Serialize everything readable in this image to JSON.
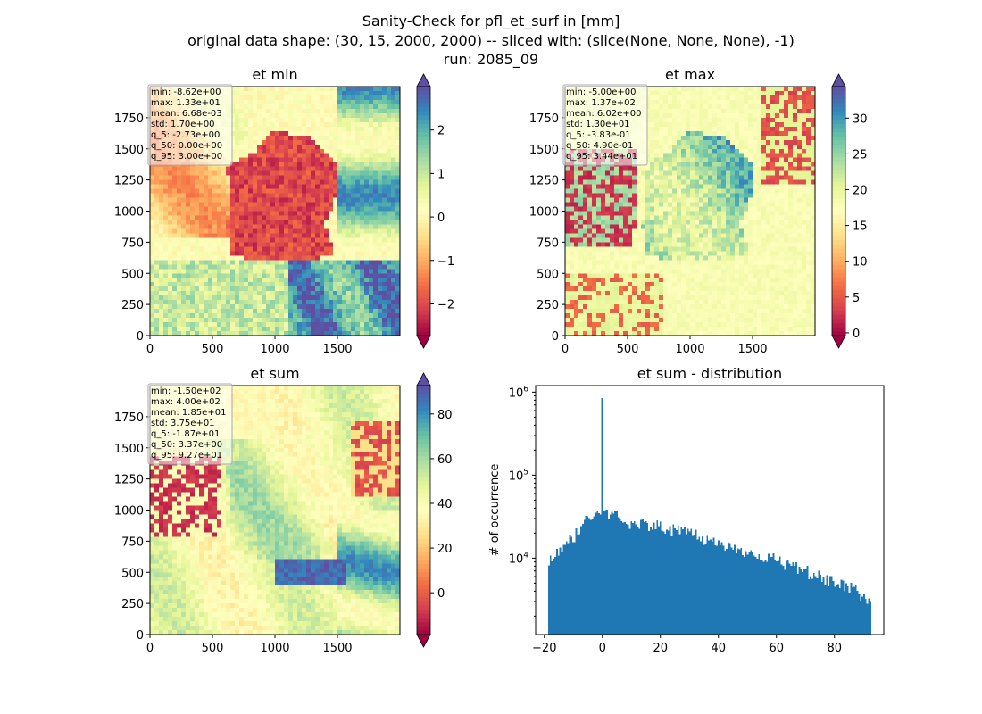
{
  "figure": {
    "title_lines": [
      "Sanity-Check for pfl_et_surf in [mm]",
      "original data shape: (30, 15, 2000, 2000) -- sliced with: (slice(None, None, None), -1)",
      "run: 2085_09"
    ]
  },
  "chart_data": [
    {
      "type": "heatmap",
      "title": "et min",
      "colormap": "Spectral",
      "xlim": [
        0,
        2000
      ],
      "ylim": [
        0,
        2000
      ],
      "xticks": [
        0,
        500,
        1000,
        1500
      ],
      "yticks": [
        0,
        250,
        500,
        750,
        1000,
        1250,
        1500,
        1750
      ],
      "colorbar": {
        "min": -2.73,
        "max": 3.0,
        "ticks": [
          -2,
          -1,
          0,
          1,
          2
        ],
        "extend": "both"
      },
      "stats": [
        "min: -8.62e+00",
        "max: 1.33e+01",
        "mean: 6.68e-03",
        "std: 1.70e+00",
        "q_5: -2.73e+00",
        "q_50: 0.00e+00",
        "q_95: 3.00e+00"
      ]
    },
    {
      "type": "heatmap",
      "title": "et max",
      "colormap": "Spectral",
      "xlim": [
        0,
        2000
      ],
      "ylim": [
        0,
        2000
      ],
      "xticks": [
        0,
        500,
        1000,
        1500
      ],
      "yticks": [
        0,
        250,
        500,
        750,
        1000,
        1250,
        1500,
        1750
      ],
      "colorbar": {
        "min": -0.383,
        "max": 34.4,
        "ticks": [
          0,
          5,
          10,
          15,
          20,
          25,
          30
        ],
        "extend": "both"
      },
      "stats": [
        "min: -5.00e+00",
        "max: 1.37e+02",
        "mean: 6.02e+00",
        "std: 1.30e+01",
        "q_5: -3.83e-01",
        "q_50: 4.90e-01",
        "q_95: 3.44e+01"
      ]
    },
    {
      "type": "heatmap",
      "title": "et sum",
      "colormap": "Spectral",
      "xlim": [
        0,
        2000
      ],
      "ylim": [
        0,
        2000
      ],
      "xticks": [
        0,
        500,
        1000,
        1500
      ],
      "yticks": [
        0,
        250,
        500,
        750,
        1000,
        1250,
        1500,
        1750
      ],
      "colorbar": {
        "min": -18.7,
        "max": 92.7,
        "ticks": [
          0,
          20,
          40,
          60,
          80
        ],
        "extend": "both"
      },
      "stats": [
        "min: -1.50e+02",
        "max: 4.00e+02",
        "mean: 1.85e+01",
        "std: 3.75e+01",
        "q_5: -1.87e+01",
        "q_50: 3.37e+00",
        "q_95: 9.27e+01"
      ]
    },
    {
      "type": "bar",
      "title": "et sum - distribution",
      "ylabel": "# of occurrence",
      "xlabel": "",
      "yscale": "log",
      "xlim": [
        -23,
        97
      ],
      "ylim": [
        1200,
        1200000
      ],
      "xticks": [
        -20,
        0,
        20,
        40,
        60,
        80
      ],
      "yticks": [
        10000,
        100000,
        1000000
      ],
      "ytick_labels": [
        "10^4",
        "10^5",
        "10^6"
      ],
      "bin_range": [
        -18.7,
        92.7
      ],
      "peak": {
        "x": 0,
        "y": 850000
      },
      "envelope": [
        [
          -18.7,
          9000
        ],
        [
          -15,
          12000
        ],
        [
          -10,
          18000
        ],
        [
          -6,
          28000
        ],
        [
          -2,
          35000
        ],
        [
          0,
          36000
        ],
        [
          5,
          32000
        ],
        [
          10,
          27000
        ],
        [
          20,
          24000
        ],
        [
          30,
          20000
        ],
        [
          40,
          15000
        ],
        [
          50,
          12000
        ],
        [
          60,
          9500
        ],
        [
          70,
          7000
        ],
        [
          80,
          5000
        ],
        [
          87,
          4200
        ],
        [
          92.7,
          3000
        ]
      ],
      "color": "#1f77b4"
    }
  ]
}
